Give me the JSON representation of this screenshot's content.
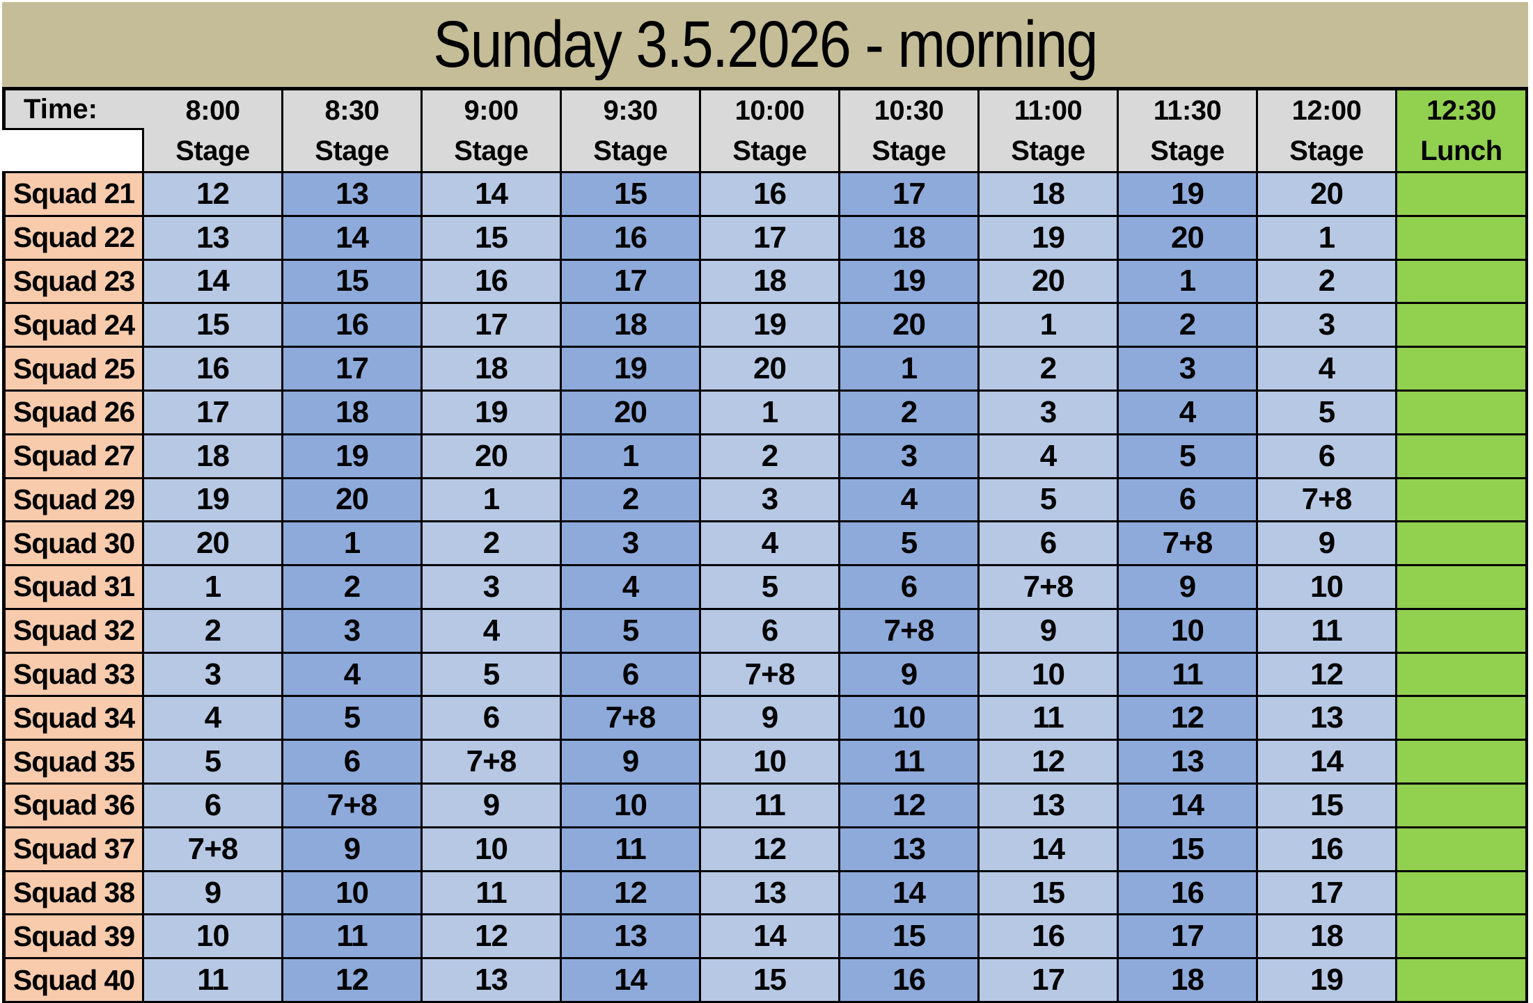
{
  "title": "Sunday 3.5.2026 - morning",
  "header": {
    "time_label": "Time:",
    "columns": [
      {
        "time": "8:00",
        "sub": "Stage"
      },
      {
        "time": "8:30",
        "sub": "Stage"
      },
      {
        "time": "9:00",
        "sub": "Stage"
      },
      {
        "time": "9:30",
        "sub": "Stage"
      },
      {
        "time": "10:00",
        "sub": "Stage"
      },
      {
        "time": "10:30",
        "sub": "Stage"
      },
      {
        "time": "11:00",
        "sub": "Stage"
      },
      {
        "time": "11:30",
        "sub": "Stage"
      },
      {
        "time": "12:00",
        "sub": "Stage"
      }
    ],
    "lunch": {
      "time": "12:30",
      "sub": "Lunch"
    }
  },
  "rows": [
    {
      "squad": "Squad 21",
      "stages": [
        "12",
        "13",
        "14",
        "15",
        "16",
        "17",
        "18",
        "19",
        "20"
      ]
    },
    {
      "squad": "Squad 22",
      "stages": [
        "13",
        "14",
        "15",
        "16",
        "17",
        "18",
        "19",
        "20",
        "1"
      ]
    },
    {
      "squad": "Squad 23",
      "stages": [
        "14",
        "15",
        "16",
        "17",
        "18",
        "19",
        "20",
        "1",
        "2"
      ]
    },
    {
      "squad": "Squad 24",
      "stages": [
        "15",
        "16",
        "17",
        "18",
        "19",
        "20",
        "1",
        "2",
        "3"
      ]
    },
    {
      "squad": "Squad 25",
      "stages": [
        "16",
        "17",
        "18",
        "19",
        "20",
        "1",
        "2",
        "3",
        "4"
      ]
    },
    {
      "squad": "Squad 26",
      "stages": [
        "17",
        "18",
        "19",
        "20",
        "1",
        "2",
        "3",
        "4",
        "5"
      ]
    },
    {
      "squad": "Squad 27",
      "stages": [
        "18",
        "19",
        "20",
        "1",
        "2",
        "3",
        "4",
        "5",
        "6"
      ]
    },
    {
      "squad": "Squad 29",
      "stages": [
        "19",
        "20",
        "1",
        "2",
        "3",
        "4",
        "5",
        "6",
        "7+8"
      ]
    },
    {
      "squad": "Squad 30",
      "stages": [
        "20",
        "1",
        "2",
        "3",
        "4",
        "5",
        "6",
        "7+8",
        "9"
      ]
    },
    {
      "squad": "Squad 31",
      "stages": [
        "1",
        "2",
        "3",
        "4",
        "5",
        "6",
        "7+8",
        "9",
        "10"
      ]
    },
    {
      "squad": "Squad 32",
      "stages": [
        "2",
        "3",
        "4",
        "5",
        "6",
        "7+8",
        "9",
        "10",
        "11"
      ]
    },
    {
      "squad": "Squad 33",
      "stages": [
        "3",
        "4",
        "5",
        "6",
        "7+8",
        "9",
        "10",
        "11",
        "12"
      ]
    },
    {
      "squad": "Squad 34",
      "stages": [
        "4",
        "5",
        "6",
        "7+8",
        "9",
        "10",
        "11",
        "12",
        "13"
      ]
    },
    {
      "squad": "Squad 35",
      "stages": [
        "5",
        "6",
        "7+8",
        "9",
        "10",
        "11",
        "12",
        "13",
        "14"
      ]
    },
    {
      "squad": "Squad 36",
      "stages": [
        "6",
        "7+8",
        "9",
        "10",
        "11",
        "12",
        "13",
        "14",
        "15"
      ]
    },
    {
      "squad": "Squad 37",
      "stages": [
        "7+8",
        "9",
        "10",
        "11",
        "12",
        "13",
        "14",
        "15",
        "16"
      ]
    },
    {
      "squad": "Squad 38",
      "stages": [
        "9",
        "10",
        "11",
        "12",
        "13",
        "14",
        "15",
        "16",
        "17"
      ]
    },
    {
      "squad": "Squad 39",
      "stages": [
        "10",
        "11",
        "12",
        "13",
        "14",
        "15",
        "16",
        "17",
        "18"
      ]
    },
    {
      "squad": "Squad 40",
      "stages": [
        "11",
        "12",
        "13",
        "14",
        "15",
        "16",
        "17",
        "18",
        "19"
      ]
    }
  ],
  "colors": {
    "title_bg": "#c4bd97",
    "header_bg": "#d9d9d9",
    "squad_bg": "#f8cbad",
    "stage_light": "#b6c8e4",
    "stage_dark": "#8eaadb",
    "lunch_bg": "#92d050",
    "border": "#000000"
  }
}
